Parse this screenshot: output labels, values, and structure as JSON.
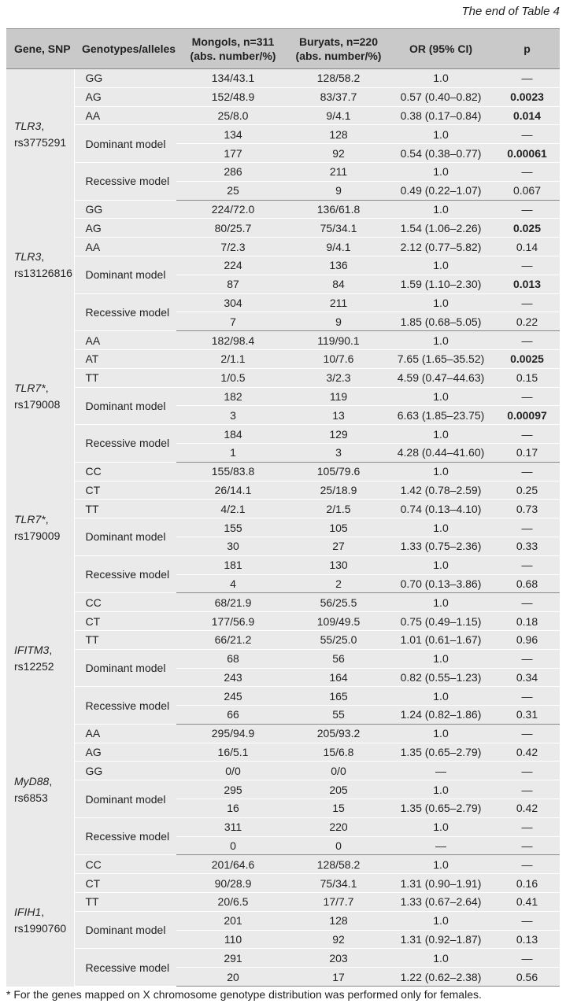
{
  "caption": "The end of Table 4",
  "headers": [
    "Gene, SNP",
    "Genotypes/alleles",
    "Mongols, n=311 (abs. number/%)",
    "Buryats, n=220 (abs. number/%)",
    "OR (95% CI)",
    "p"
  ],
  "groups": [
    {
      "gene": "TLR3",
      "snp": "rs3775291",
      "rows": [
        {
          "label": "GG",
          "mong": "134/43.1",
          "bur": "128/58.2",
          "or": "1.0",
          "p": "—",
          "bold": false
        },
        {
          "label": "AG",
          "mong": "152/48.9",
          "bur": "83/37.7",
          "or": "0.57 (0.40–0.82)",
          "p": "0.0023",
          "bold": true
        },
        {
          "label": "AA",
          "mong": "25/8.0",
          "bur": "9/4.1",
          "or": "0.38 (0.17–0.84)",
          "p": "0.014",
          "bold": true
        },
        {
          "label": "Dominant model",
          "mong": "134",
          "bur": "128",
          "or": "1.0",
          "p": "—",
          "bold": false
        },
        {
          "label": "",
          "mong": "177",
          "bur": "92",
          "or": "0.54 (0.38–0.77)",
          "p": "0.00061",
          "bold": true
        },
        {
          "label": "Recessive model",
          "mong": "286",
          "bur": "211",
          "or": "1.0",
          "p": "—",
          "bold": false
        },
        {
          "label": "",
          "mong": "25",
          "bur": "9",
          "or": "0.49 (0.22–1.07)",
          "p": "0.067",
          "bold": false
        }
      ]
    },
    {
      "gene": "TLR3",
      "snp": "rs13126816",
      "rows": [
        {
          "label": "GG",
          "mong": "224/72.0",
          "bur": "136/61.8",
          "or": "1.0",
          "p": "—",
          "bold": false
        },
        {
          "label": "AG",
          "mong": "80/25.7",
          "bur": "75/34.1",
          "or": "1.54 (1.06–2.26)",
          "p": "0.025",
          "bold": true
        },
        {
          "label": "AA",
          "mong": "7/2.3",
          "bur": "9/4.1",
          "or": "2.12 (0.77–5.82)",
          "p": "0.14",
          "bold": false
        },
        {
          "label": "Dominant model",
          "mong": "224",
          "bur": "136",
          "or": "1.0",
          "p": "—",
          "bold": false
        },
        {
          "label": "",
          "mong": "87",
          "bur": "84",
          "or": "1.59 (1.10–2.30)",
          "p": "0.013",
          "bold": true
        },
        {
          "label": "Recessive model",
          "mong": "304",
          "bur": "211",
          "or": "1.0",
          "p": "—",
          "bold": false
        },
        {
          "label": "",
          "mong": "7",
          "bur": "9",
          "or": "1.85 (0.68–5.05)",
          "p": "0.22",
          "bold": false
        }
      ]
    },
    {
      "gene": "TLR7*",
      "snp": "rs179008",
      "rows": [
        {
          "label": "AA",
          "mong": "182/98.4",
          "bur": "119/90.1",
          "or": "1.0",
          "p": "—",
          "bold": false
        },
        {
          "label": "AT",
          "mong": "2/1.1",
          "bur": "10/7.6",
          "or": "7.65 (1.65–35.52)",
          "p": "0.0025",
          "bold": true
        },
        {
          "label": "TT",
          "mong": "1/0.5",
          "bur": "3/2.3",
          "or": "4.59 (0.47–44.63)",
          "p": "0.15",
          "bold": false
        },
        {
          "label": "Dominant model",
          "mong": "182",
          "bur": "119",
          "or": "1.0",
          "p": "—",
          "bold": false
        },
        {
          "label": "",
          "mong": "3",
          "bur": "13",
          "or": "6.63 (1.85–23.75)",
          "p": "0.00097",
          "bold": true
        },
        {
          "label": "Recessive model",
          "mong": "184",
          "bur": "129",
          "or": "1.0",
          "p": "—",
          "bold": false
        },
        {
          "label": "",
          "mong": "1",
          "bur": "3",
          "or": "4.28 (0.44–41.60)",
          "p": "0.17",
          "bold": false
        }
      ]
    },
    {
      "gene": "TLR7*",
      "snp": "rs179009",
      "rows": [
        {
          "label": "CC",
          "mong": "155/83.8",
          "bur": "105/79.6",
          "or": "1.0",
          "p": "—",
          "bold": false
        },
        {
          "label": "CT",
          "mong": "26/14.1",
          "bur": "25/18.9",
          "or": "1.42 (0.78–2.59)",
          "p": "0.25",
          "bold": false
        },
        {
          "label": "TT",
          "mong": "4/2.1",
          "bur": "2/1.5",
          "or": "0.74 (0.13–4.10)",
          "p": "0.73",
          "bold": false
        },
        {
          "label": "Dominant model",
          "mong": "155",
          "bur": "105",
          "or": "1.0",
          "p": "—",
          "bold": false
        },
        {
          "label": "",
          "mong": "30",
          "bur": "27",
          "or": "1.33 (0.75–2.36)",
          "p": "0.33",
          "bold": false
        },
        {
          "label": "Recessive model",
          "mong": "181",
          "bur": "130",
          "or": "1.0",
          "p": "—",
          "bold": false
        },
        {
          "label": "",
          "mong": "4",
          "bur": "2",
          "or": "0.70 (0.13–3.86)",
          "p": "0.68",
          "bold": false
        }
      ]
    },
    {
      "gene": "IFITM3",
      "snp": "rs12252",
      "rows": [
        {
          "label": "CC",
          "mong": "68/21.9",
          "bur": "56/25.5",
          "or": "1.0",
          "p": "—",
          "bold": false
        },
        {
          "label": "CT",
          "mong": "177/56.9",
          "bur": "109/49.5",
          "or": "0.75 (0.49–1.15)",
          "p": "0.18",
          "bold": false
        },
        {
          "label": "TT",
          "mong": "66/21.2",
          "bur": "55/25.0",
          "or": "1.01 (0.61–1.67)",
          "p": "0.96",
          "bold": false
        },
        {
          "label": "Dominant model",
          "mong": "68",
          "bur": "56",
          "or": "1.0",
          "p": "—",
          "bold": false
        },
        {
          "label": "",
          "mong": "243",
          "bur": "164",
          "or": "0.82 (0.55–1.23)",
          "p": "0.34",
          "bold": false
        },
        {
          "label": "Recessive model",
          "mong": "245",
          "bur": "165",
          "or": "1.0",
          "p": "—",
          "bold": false
        },
        {
          "label": "",
          "mong": "66",
          "bur": "55",
          "or": "1.24 (0.82–1.86)",
          "p": "0.31",
          "bold": false
        }
      ]
    },
    {
      "gene": "MyD88",
      "snp": "rs6853",
      "rows": [
        {
          "label": "AA",
          "mong": "295/94.9",
          "bur": "205/93.2",
          "or": "1.0",
          "p": "—",
          "bold": false
        },
        {
          "label": "AG",
          "mong": "16/5.1",
          "bur": "15/6.8",
          "or": "1.35 (0.65–2.79)",
          "p": "0.42",
          "bold": false
        },
        {
          "label": "GG",
          "mong": "0/0",
          "bur": "0/0",
          "or": "—",
          "p": "—",
          "bold": false
        },
        {
          "label": "Dominant model",
          "mong": "295",
          "bur": "205",
          "or": "1.0",
          "p": "—",
          "bold": false
        },
        {
          "label": "",
          "mong": "16",
          "bur": "15",
          "or": "1.35 (0.65–2.79)",
          "p": "0.42",
          "bold": false
        },
        {
          "label": "Recessive model",
          "mong": "311",
          "bur": "220",
          "or": "1.0",
          "p": "—",
          "bold": false
        },
        {
          "label": "",
          "mong": "0",
          "bur": "0",
          "or": "—",
          "p": "—",
          "bold": false
        }
      ]
    },
    {
      "gene": "IFIH1",
      "snp": "rs1990760",
      "rows": [
        {
          "label": "CC",
          "mong": "201/64.6",
          "bur": "128/58.2",
          "or": "1.0",
          "p": "—",
          "bold": false
        },
        {
          "label": "CT",
          "mong": "90/28.9",
          "bur": "75/34.1",
          "or": "1.31 (0.90–1.91)",
          "p": "0.16",
          "bold": false
        },
        {
          "label": "TT",
          "mong": "20/6.5",
          "bur": "17/7.7",
          "or": "1.33 (0.67–2.64)",
          "p": "0.41",
          "bold": false
        },
        {
          "label": "Dominant model",
          "mong": "201",
          "bur": "128",
          "or": "1.0",
          "p": "—",
          "bold": false
        },
        {
          "label": "",
          "mong": "110",
          "bur": "92",
          "or": "1.31 (0.92–1.87)",
          "p": "0.13",
          "bold": false
        },
        {
          "label": "Recessive model",
          "mong": "291",
          "bur": "203",
          "or": "1.0",
          "p": "—",
          "bold": false
        },
        {
          "label": "",
          "mong": "20",
          "bur": "17",
          "or": "1.22 (0.62–2.38)",
          "p": "0.56",
          "bold": false
        }
      ]
    }
  ],
  "footnote": "* For the genes mapped on X chromosome genotype distribution was performed only for females."
}
